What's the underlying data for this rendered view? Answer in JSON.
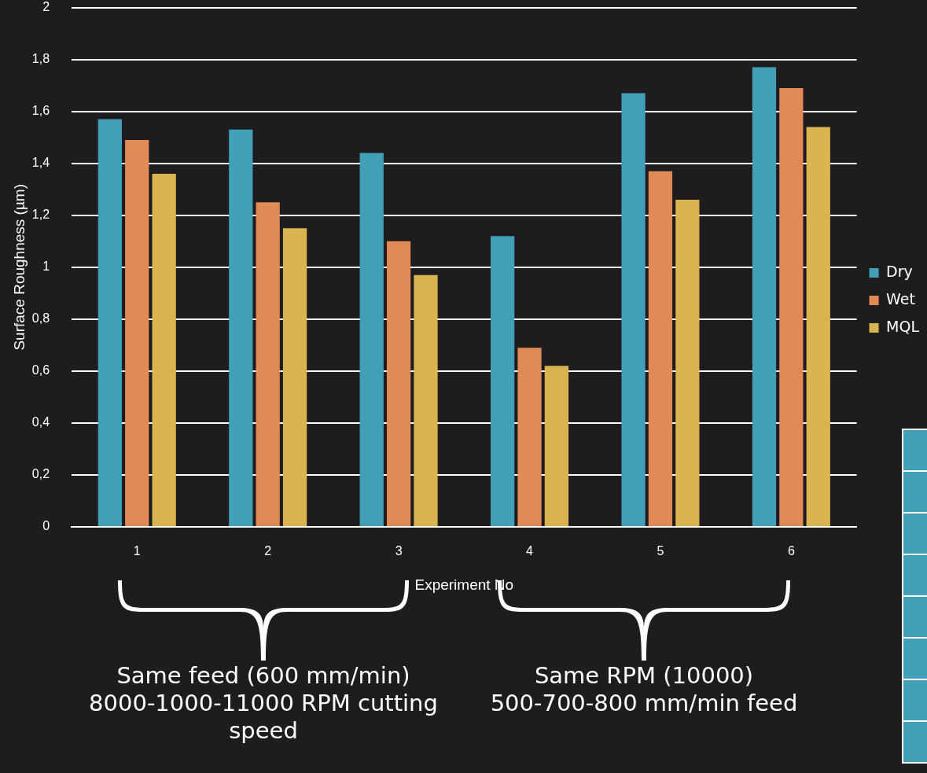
{
  "chart_data": {
    "type": "bar",
    "xlabel": "Experiment No",
    "ylabel": "Surface Roughness (µm)",
    "categories": [
      "1",
      "2",
      "3",
      "4",
      "5",
      "6"
    ],
    "series": [
      {
        "name": "Dry",
        "color": "#41a0b8",
        "values": [
          1.57,
          1.53,
          1.44,
          1.12,
          1.67,
          1.77
        ]
      },
      {
        "name": "Wet",
        "color": "#e08a55",
        "values": [
          1.49,
          1.25,
          1.1,
          0.69,
          1.37,
          1.69
        ]
      },
      {
        "name": "MQL",
        "color": "#dab44e",
        "values": [
          1.36,
          1.15,
          0.97,
          0.62,
          1.26,
          1.54
        ]
      }
    ],
    "ylim": [
      0,
      2
    ],
    "yticks": [
      0,
      {
        "value": 0.2,
        "label": "0,2"
      },
      {
        "value": 0.4,
        "label": "0,4"
      },
      {
        "value": 0.6,
        "label": "0,6"
      },
      {
        "value": 0.8,
        "label": "0,8"
      },
      1,
      {
        "value": 1.2,
        "label": "1,2"
      },
      {
        "value": 1.4,
        "label": "1,4"
      },
      {
        "value": 1.6,
        "label": "1,6"
      },
      {
        "value": 1.8,
        "label": "1,8"
      },
      2
    ],
    "grid": "y",
    "legend": "right",
    "annotations": [
      "Same feed (600 mm/min)\n8000-1000-11000 RPM cutting speed",
      "Same RPM (10000)\n500-700-800 mm/min feed"
    ]
  }
}
